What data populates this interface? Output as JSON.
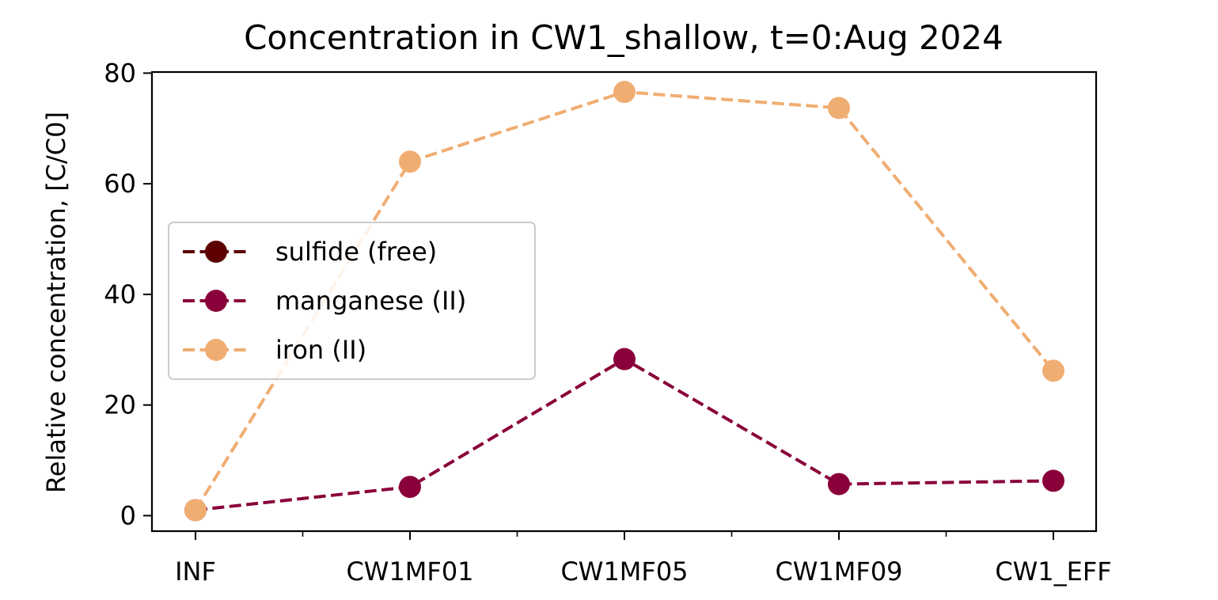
{
  "chart_data": {
    "type": "line",
    "title": "Concentration in CW1_shallow, t=0:Aug 2024",
    "xlabel": "",
    "ylabel": "Relative concentration, [C/C0]",
    "categories": [
      "INF",
      "CW1MF01",
      "CW1MF05",
      "CW1MF09",
      "CW1_EFF"
    ],
    "ylim": [
      -2.8,
      80.2
    ],
    "yticks": [
      0,
      20,
      40,
      60,
      80
    ],
    "grid": false,
    "legend_position": "center-left",
    "line_style": "dashed",
    "marker": "circle",
    "series": [
      {
        "name": "sulfide (free)",
        "color": "#5c0000",
        "values": [
          null,
          null,
          null,
          null,
          null
        ]
      },
      {
        "name": "manganese (II)",
        "color": "#8a003a",
        "values": [
          1.0,
          5.2,
          28.3,
          5.7,
          6.3
        ]
      },
      {
        "name": "iron (II)",
        "color": "#f0ad72",
        "values": [
          1.0,
          64.0,
          76.6,
          73.7,
          26.2
        ]
      }
    ]
  }
}
